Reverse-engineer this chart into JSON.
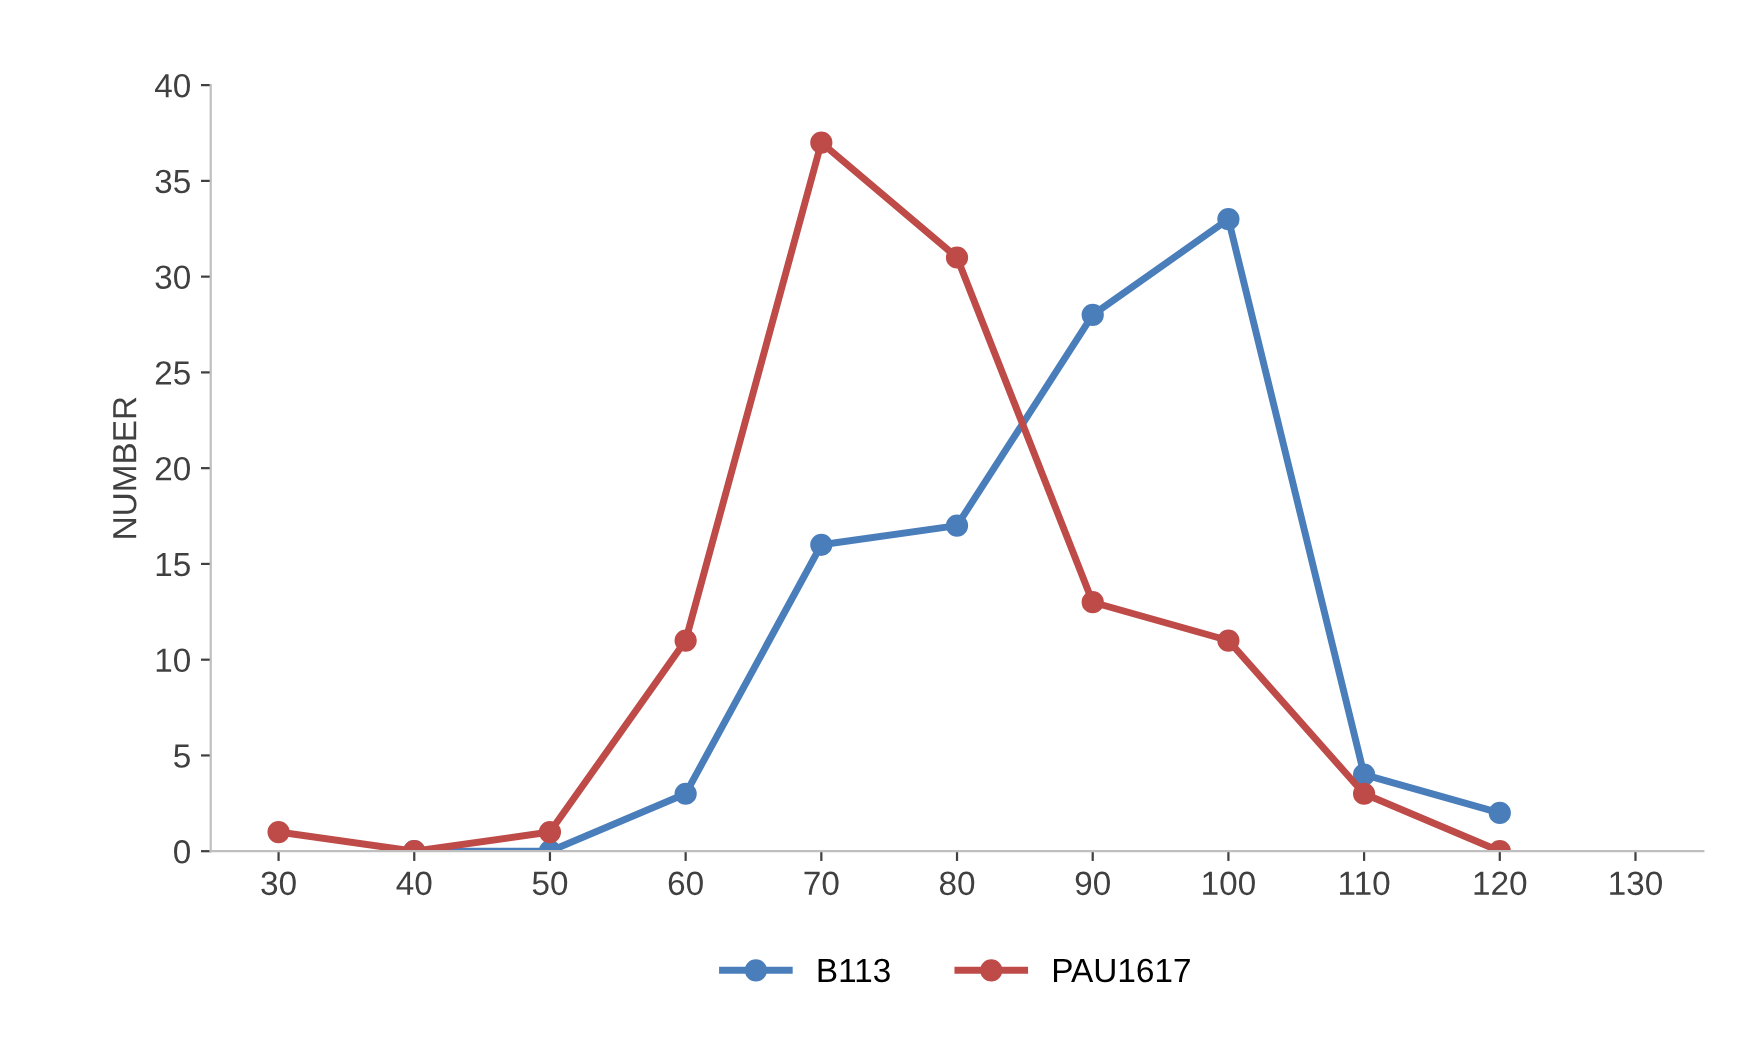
{
  "chart_data": {
    "type": "line",
    "ylabel": "NUMBER",
    "categories": [
      "30",
      "40",
      "50",
      "60",
      "70",
      "80",
      "90",
      "100",
      "110",
      "120",
      "130"
    ],
    "series": [
      {
        "name": "B113",
        "color": "#4a7ebb",
        "values": [
          null,
          0,
          0,
          3,
          16,
          17,
          28,
          33,
          4,
          2,
          null
        ]
      },
      {
        "name": "PAU1617",
        "color": "#be4b48",
        "values": [
          1,
          0,
          1,
          11,
          37,
          31,
          13,
          11,
          3,
          0,
          null
        ]
      }
    ],
    "ylim": [
      0,
      40
    ],
    "yticks": [
      0,
      5,
      10,
      15,
      20,
      25,
      30,
      35,
      40
    ],
    "grid": false,
    "legend": "bottom",
    "marker": "circle",
    "line_style": "solid"
  }
}
